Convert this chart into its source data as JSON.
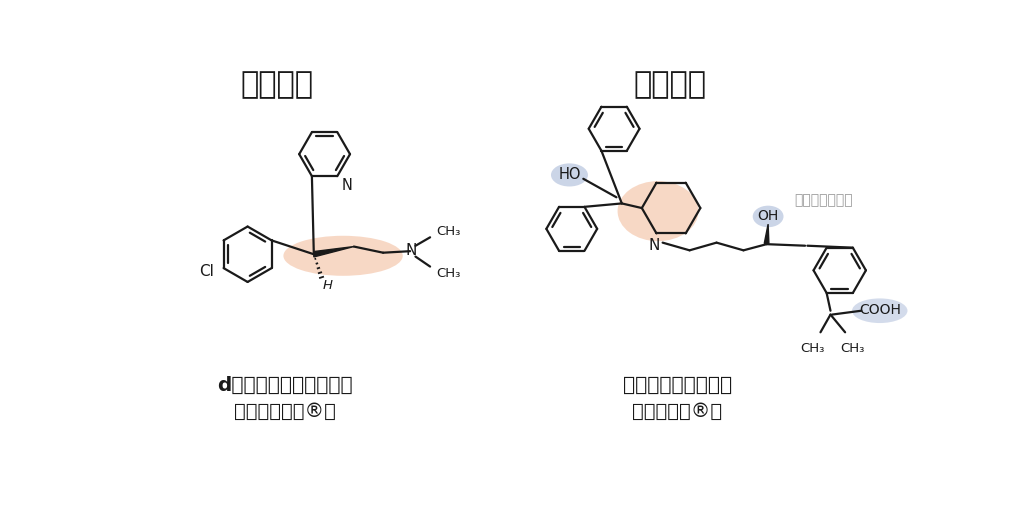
{
  "title_left": "第一世代",
  "title_right": "第二世代",
  "drug_left_name": "d－クロルフェニラミン",
  "drug_left_brand": "（ポララミン®）",
  "drug_right_name": "フェキソフェナジン",
  "drug_right_brand": "（アレグラ®）",
  "note_right": "及び鏡像異性体",
  "bg_color": "#ffffff",
  "title_fontsize": 22,
  "drug_name_fontsize": 14,
  "highlight_orange": "#f2b896",
  "highlight_blue": "#b0bfdb",
  "line_color": "#1a1a1a",
  "text_color": "#1a1a1a",
  "label_fontsize": 9.5
}
